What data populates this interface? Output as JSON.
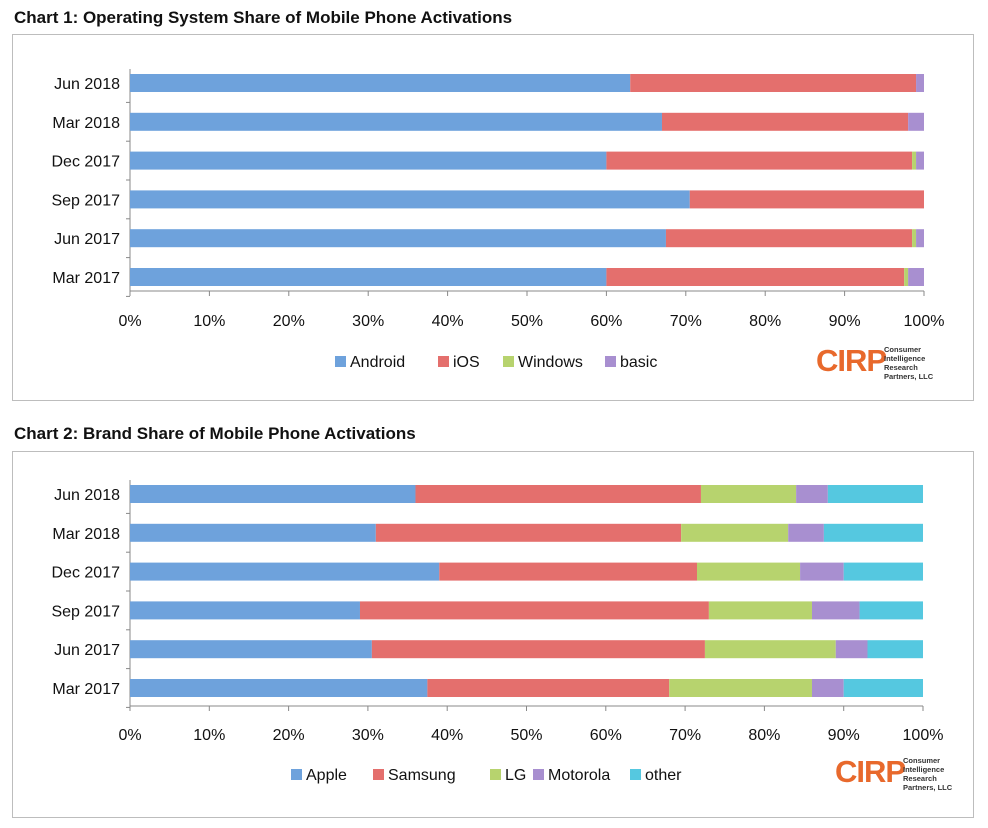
{
  "colors": {
    "blue": "#6ea2dc",
    "red": "#e46f6d",
    "green": "#b7d36e",
    "purple": "#a88fd0",
    "cyan": "#55c8e0",
    "logo": "#e8692c"
  },
  "logo": {
    "mark": "CIRP",
    "text": "Consumer Intelligence Research Partners, LLC"
  },
  "chart_data": [
    {
      "type": "bar",
      "orientation": "horizontal",
      "stacked": true,
      "title": "Chart 1: Operating System Share of Mobile Phone Activations",
      "categories": [
        "Jun 2018",
        "Mar 2018",
        "Dec 2017",
        "Sep 2017",
        "Jun 2017",
        "Mar 2017"
      ],
      "xlim": [
        0,
        100
      ],
      "xticks": [
        "0%",
        "10%",
        "20%",
        "30%",
        "40%",
        "50%",
        "60%",
        "70%",
        "80%",
        "90%",
        "100%"
      ],
      "legend_position": "bottom",
      "grid": false,
      "series": [
        {
          "name": "Android",
          "color": "#6ea2dc",
          "values": [
            63,
            67,
            60,
            70.5,
            67.5,
            60
          ]
        },
        {
          "name": "iOS",
          "color": "#e46f6d",
          "values": [
            36,
            31,
            38.5,
            29.5,
            31,
            37.5
          ]
        },
        {
          "name": "Windows",
          "color": "#b7d36e",
          "values": [
            0,
            0,
            0.5,
            0,
            0.5,
            0.5
          ]
        },
        {
          "name": "basic",
          "color": "#a88fd0",
          "values": [
            1,
            2,
            1,
            0,
            1,
            2
          ]
        }
      ]
    },
    {
      "type": "bar",
      "orientation": "horizontal",
      "stacked": true,
      "title": "Chart 2: Brand Share of Mobile Phone Activations",
      "categories": [
        "Jun 2018",
        "Mar 2018",
        "Dec 2017",
        "Sep 2017",
        "Jun 2017",
        "Mar 2017"
      ],
      "xlim": [
        0,
        100
      ],
      "xticks": [
        "0%",
        "10%",
        "20%",
        "30%",
        "40%",
        "50%",
        "60%",
        "70%",
        "80%",
        "90%",
        "100%"
      ],
      "legend_position": "bottom",
      "grid": false,
      "series": [
        {
          "name": "Apple",
          "color": "#6ea2dc",
          "values": [
            36,
            31,
            39,
            29,
            30.5,
            37.5
          ]
        },
        {
          "name": "Samsung",
          "color": "#e46f6d",
          "values": [
            36,
            38.5,
            32.5,
            44,
            42,
            30.5
          ]
        },
        {
          "name": "LG",
          "color": "#b7d36e",
          "values": [
            12,
            13.5,
            13,
            13,
            16.5,
            18
          ]
        },
        {
          "name": "Motorola",
          "color": "#a88fd0",
          "values": [
            4,
            4.5,
            5.5,
            6,
            4,
            4
          ]
        },
        {
          "name": "other",
          "color": "#55c8e0",
          "values": [
            12,
            12.5,
            10,
            8,
            7,
            10
          ]
        }
      ]
    }
  ]
}
